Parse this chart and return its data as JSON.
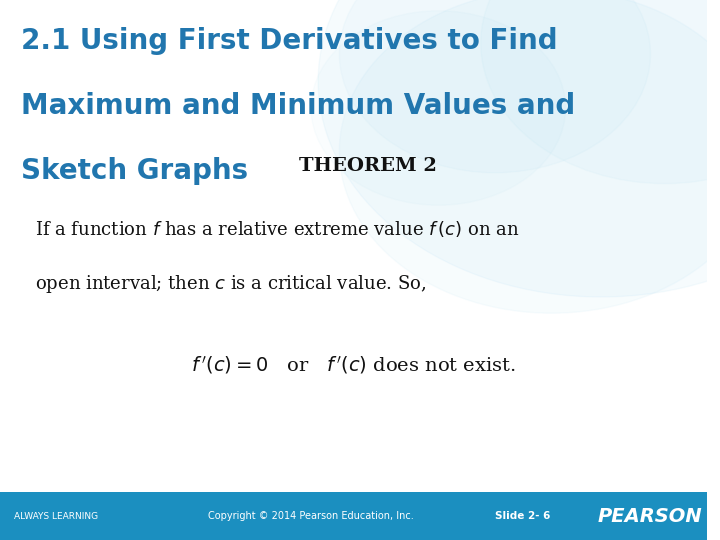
{
  "title_line1": "2.1 Using First Derivatives to Find",
  "title_line2": "Maximum and Minimum Values and",
  "title_line3": "Sketch Graphs",
  "title_color": "#2176AE",
  "theorem_label": "THEOREM 2",
  "bg_color": "#ffffff",
  "footer_bg": "#1b8fc0",
  "footer_left": "ALWAYS LEARNING",
  "footer_center": "Copyright © 2014 Pearson Education, Inc.",
  "footer_right": "Slide 2- 6",
  "footer_logo": "PEARSON",
  "footer_text_color": "#ffffff"
}
